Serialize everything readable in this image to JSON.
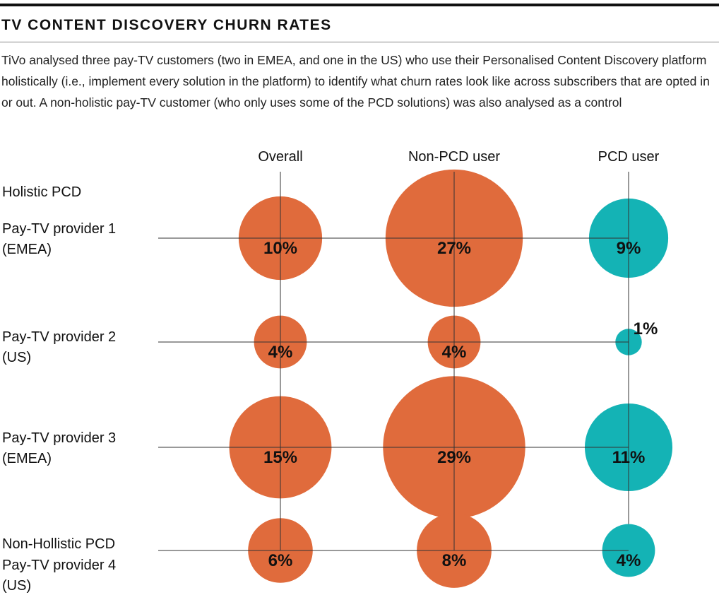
{
  "title": "TV CONTENT DISCOVERY CHURN RATES",
  "description": "TiVo analysed three pay-TV customers (two in EMEA, and one in the US) who use their Personalised Content Discovery platform holistically (i.e., implement every solution in the platform) to identify what churn rates look like across subscribers that are opted in or out. A non-holistic pay-TV customer (who only uses some of the PCD solutions) was also analysed as a control",
  "colors": {
    "orange": "#E06B3C",
    "teal": "#14B3B5",
    "line": "#333333"
  },
  "chart_data": {
    "type": "bubble",
    "title": "TV CONTENT DISCOVERY CHURN RATES",
    "columns": [
      "Overall",
      "Non-PCD user",
      "PCD user"
    ],
    "groups": [
      "Holistic PCD",
      "Non-Hollistic PCD"
    ],
    "rows": [
      {
        "label": [
          "Pay-TV provider 1",
          "(EMEA)"
        ],
        "group": "Holistic PCD",
        "values": [
          10,
          27,
          9
        ]
      },
      {
        "label": [
          "Pay-TV provider 2",
          "(US)"
        ],
        "group": "Holistic PCD",
        "values": [
          4,
          4,
          1
        ]
      },
      {
        "label": [
          "Pay-TV provider 3",
          "(EMEA)"
        ],
        "group": "Holistic PCD",
        "values": [
          15,
          29,
          11
        ]
      },
      {
        "label": [
          "Pay-TV provider 4",
          "(US)"
        ],
        "group": "Non-Hollistic PCD",
        "values": [
          6,
          8,
          4
        ]
      }
    ],
    "unit": "%",
    "series_colors": [
      "#E06B3C",
      "#E06B3C",
      "#14B3B5"
    ]
  }
}
